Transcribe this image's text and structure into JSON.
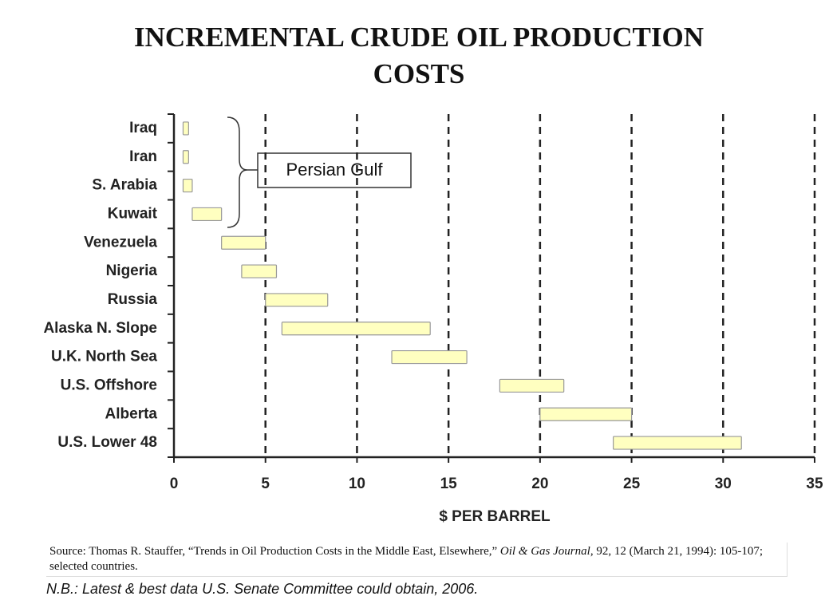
{
  "chart_data": {
    "type": "range_bar",
    "title": "INCREMENTAL CRUDE OIL PRODUCTION COSTS",
    "x_label": "$ PER BARREL",
    "categories": [
      "Iraq",
      "Iran",
      "S. Arabia",
      "Kuwait",
      "Venezuela",
      "Nigeria",
      "Russia",
      "Alaska N. Slope",
      "U.K. North Sea",
      "U.S. Offshore",
      "Alberta",
      "U.S. Lower 48"
    ],
    "low": [
      0.5,
      0.5,
      0.5,
      1.0,
      2.6,
      3.7,
      5.0,
      5.9,
      11.9,
      17.8,
      20.0,
      24.0
    ],
    "high": [
      0.8,
      0.8,
      1.0,
      2.6,
      5.0,
      5.6,
      8.4,
      14.0,
      16.0,
      21.3,
      25.0,
      31.0
    ],
    "color": "#ffffc0",
    "xlim": [
      0,
      35
    ],
    "xticks": [
      0,
      5,
      10,
      15,
      20,
      25,
      30,
      35
    ],
    "grid": true,
    "annotation": "Persian Gulf",
    "source": [
      "Source:  Thomas R. Stauffer, “Trends in Oil Production Costs in the Middle East, Elsewhere,” ",
      "Oil & Gas Journal",
      ", 92, 12 (March 21, 1994): 105-107; selected countries."
    ],
    "note": "N.B.: Latest & best data U.S. Senate Committee could obtain, 2006."
  }
}
